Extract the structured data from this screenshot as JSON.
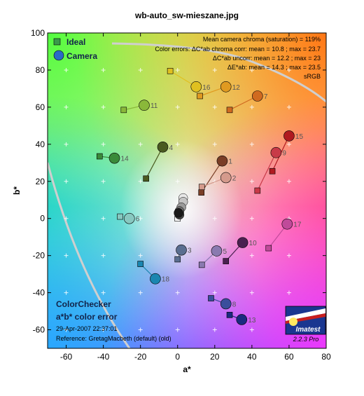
{
  "chart_data": {
    "type": "scatter",
    "title": "wb-auto_sw-mieszane.jpg",
    "xlabel": "a*",
    "ylabel": "b*",
    "xlim": [
      -70,
      80
    ],
    "ylim": [
      -70,
      100
    ],
    "xticks": [
      -60,
      -40,
      -20,
      0,
      20,
      40,
      60,
      80
    ],
    "yticks": [
      -60,
      -40,
      -20,
      0,
      20,
      40,
      60,
      80,
      100
    ],
    "grid": "crosshair markers at each 10 units",
    "legend": {
      "placement": "top-left",
      "ideal_label": "Ideal",
      "camera_label": "Camera"
    },
    "info_lines": [
      "Mean camera chroma (saturation) = 119%",
      "Color errors:  ΔC*ab chroma corr:  mean = 10.8 ;  max = 23.7",
      "ΔC*ab uncorr:  mean = 12.2 ;  max = 23",
      "ΔE*ab:  mean = 14.3 ;  max = 23.5",
      "sRGB"
    ],
    "panel": {
      "title1": "ColorChecker",
      "title2": "a*b* color error",
      "date": "29-Apr-2007 22:37:01",
      "reference": "Reference: GretagMacbeth (default) (old)"
    },
    "logo": {
      "text": "Imatest",
      "version": "2.2.3  Pro"
    },
    "patches": [
      {
        "id": "1",
        "ideal": [
          12.8,
          14.0
        ],
        "camera": [
          24.0,
          31.0
        ],
        "color": "#7a3e26"
      },
      {
        "id": "2",
        "ideal": [
          13.0,
          17.0
        ],
        "camera": [
          26.0,
          22.0
        ],
        "color": "#d49a8c"
      },
      {
        "id": "3",
        "ideal": [
          0.0,
          -22.0
        ],
        "camera": [
          2.0,
          -17.0
        ],
        "color": "#5a6e90"
      },
      {
        "id": "4",
        "ideal": [
          -17.0,
          21.5
        ],
        "camera": [
          -8.0,
          38.5
        ],
        "color": "#4a5a20"
      },
      {
        "id": "5",
        "ideal": [
          13.0,
          -25.0
        ],
        "camera": [
          21.0,
          -17.5
        ],
        "color": "#8a7ab0"
      },
      {
        "id": "6",
        "ideal": [
          -31.0,
          1.0
        ],
        "camera": [
          -26.0,
          0.0
        ],
        "color": "#88c8c0"
      },
      {
        "id": "7",
        "ideal": [
          28.0,
          58.5
        ],
        "camera": [
          43.0,
          66.0
        ],
        "color": "#d06a20"
      },
      {
        "id": "8",
        "ideal": [
          18.0,
          -43.0
        ],
        "camera": [
          26.0,
          -46.0
        ],
        "color": "#3a4e9c"
      },
      {
        "id": "9",
        "ideal": [
          43.0,
          15.0
        ],
        "camera": [
          53.0,
          35.5
        ],
        "color": "#c83a48"
      },
      {
        "id": "10",
        "ideal": [
          26.0,
          -23.0
        ],
        "camera": [
          35.0,
          -13.0
        ],
        "color": "#4a2050"
      },
      {
        "id": "11",
        "ideal": [
          -29.0,
          58.5
        ],
        "camera": [
          -18.0,
          61.0
        ],
        "color": "#8ab83a"
      },
      {
        "id": "12",
        "ideal": [
          12.0,
          66.0
        ],
        "camera": [
          26.0,
          71.0
        ],
        "color": "#e09a20"
      },
      {
        "id": "13",
        "ideal": [
          28.0,
          -52.0
        ],
        "camera": [
          34.5,
          -54.5
        ],
        "color": "#1a2a80"
      },
      {
        "id": "14",
        "ideal": [
          -42.0,
          33.5
        ],
        "camera": [
          -34.0,
          32.5
        ],
        "color": "#3a8a3a"
      },
      {
        "id": "15",
        "ideal": [
          51.0,
          25.5
        ],
        "camera": [
          60.0,
          44.5
        ],
        "color": "#b01a20"
      },
      {
        "id": "16",
        "ideal": [
          -4.0,
          79.5
        ],
        "camera": [
          10.0,
          71.0
        ],
        "color": "#e0c020"
      },
      {
        "id": "17",
        "ideal": [
          49.0,
          -16.0
        ],
        "camera": [
          59.0,
          -3.0
        ],
        "color": "#c04a9a"
      },
      {
        "id": "18",
        "ideal": [
          -20.0,
          -24.5
        ],
        "camera": [
          -12.0,
          -32.5
        ],
        "color": "#1a86b0"
      }
    ],
    "neutrals": [
      {
        "camera": [
          3.0,
          11.0
        ],
        "color": "#e8e8e8"
      },
      {
        "camera": [
          3.0,
          9.0
        ],
        "color": "#c4c4c4"
      },
      {
        "camera": [
          2.0,
          6.0
        ],
        "color": "#9a9a9a"
      },
      {
        "camera": [
          1.0,
          4.0
        ],
        "color": "#6e6e6e"
      },
      {
        "camera": [
          1.0,
          2.0
        ],
        "color": "#444444"
      },
      {
        "camera": [
          0.5,
          3.0
        ],
        "color": "#1a1a1a"
      }
    ],
    "neutral_ideal": [
      0.0,
      0.0
    ]
  }
}
